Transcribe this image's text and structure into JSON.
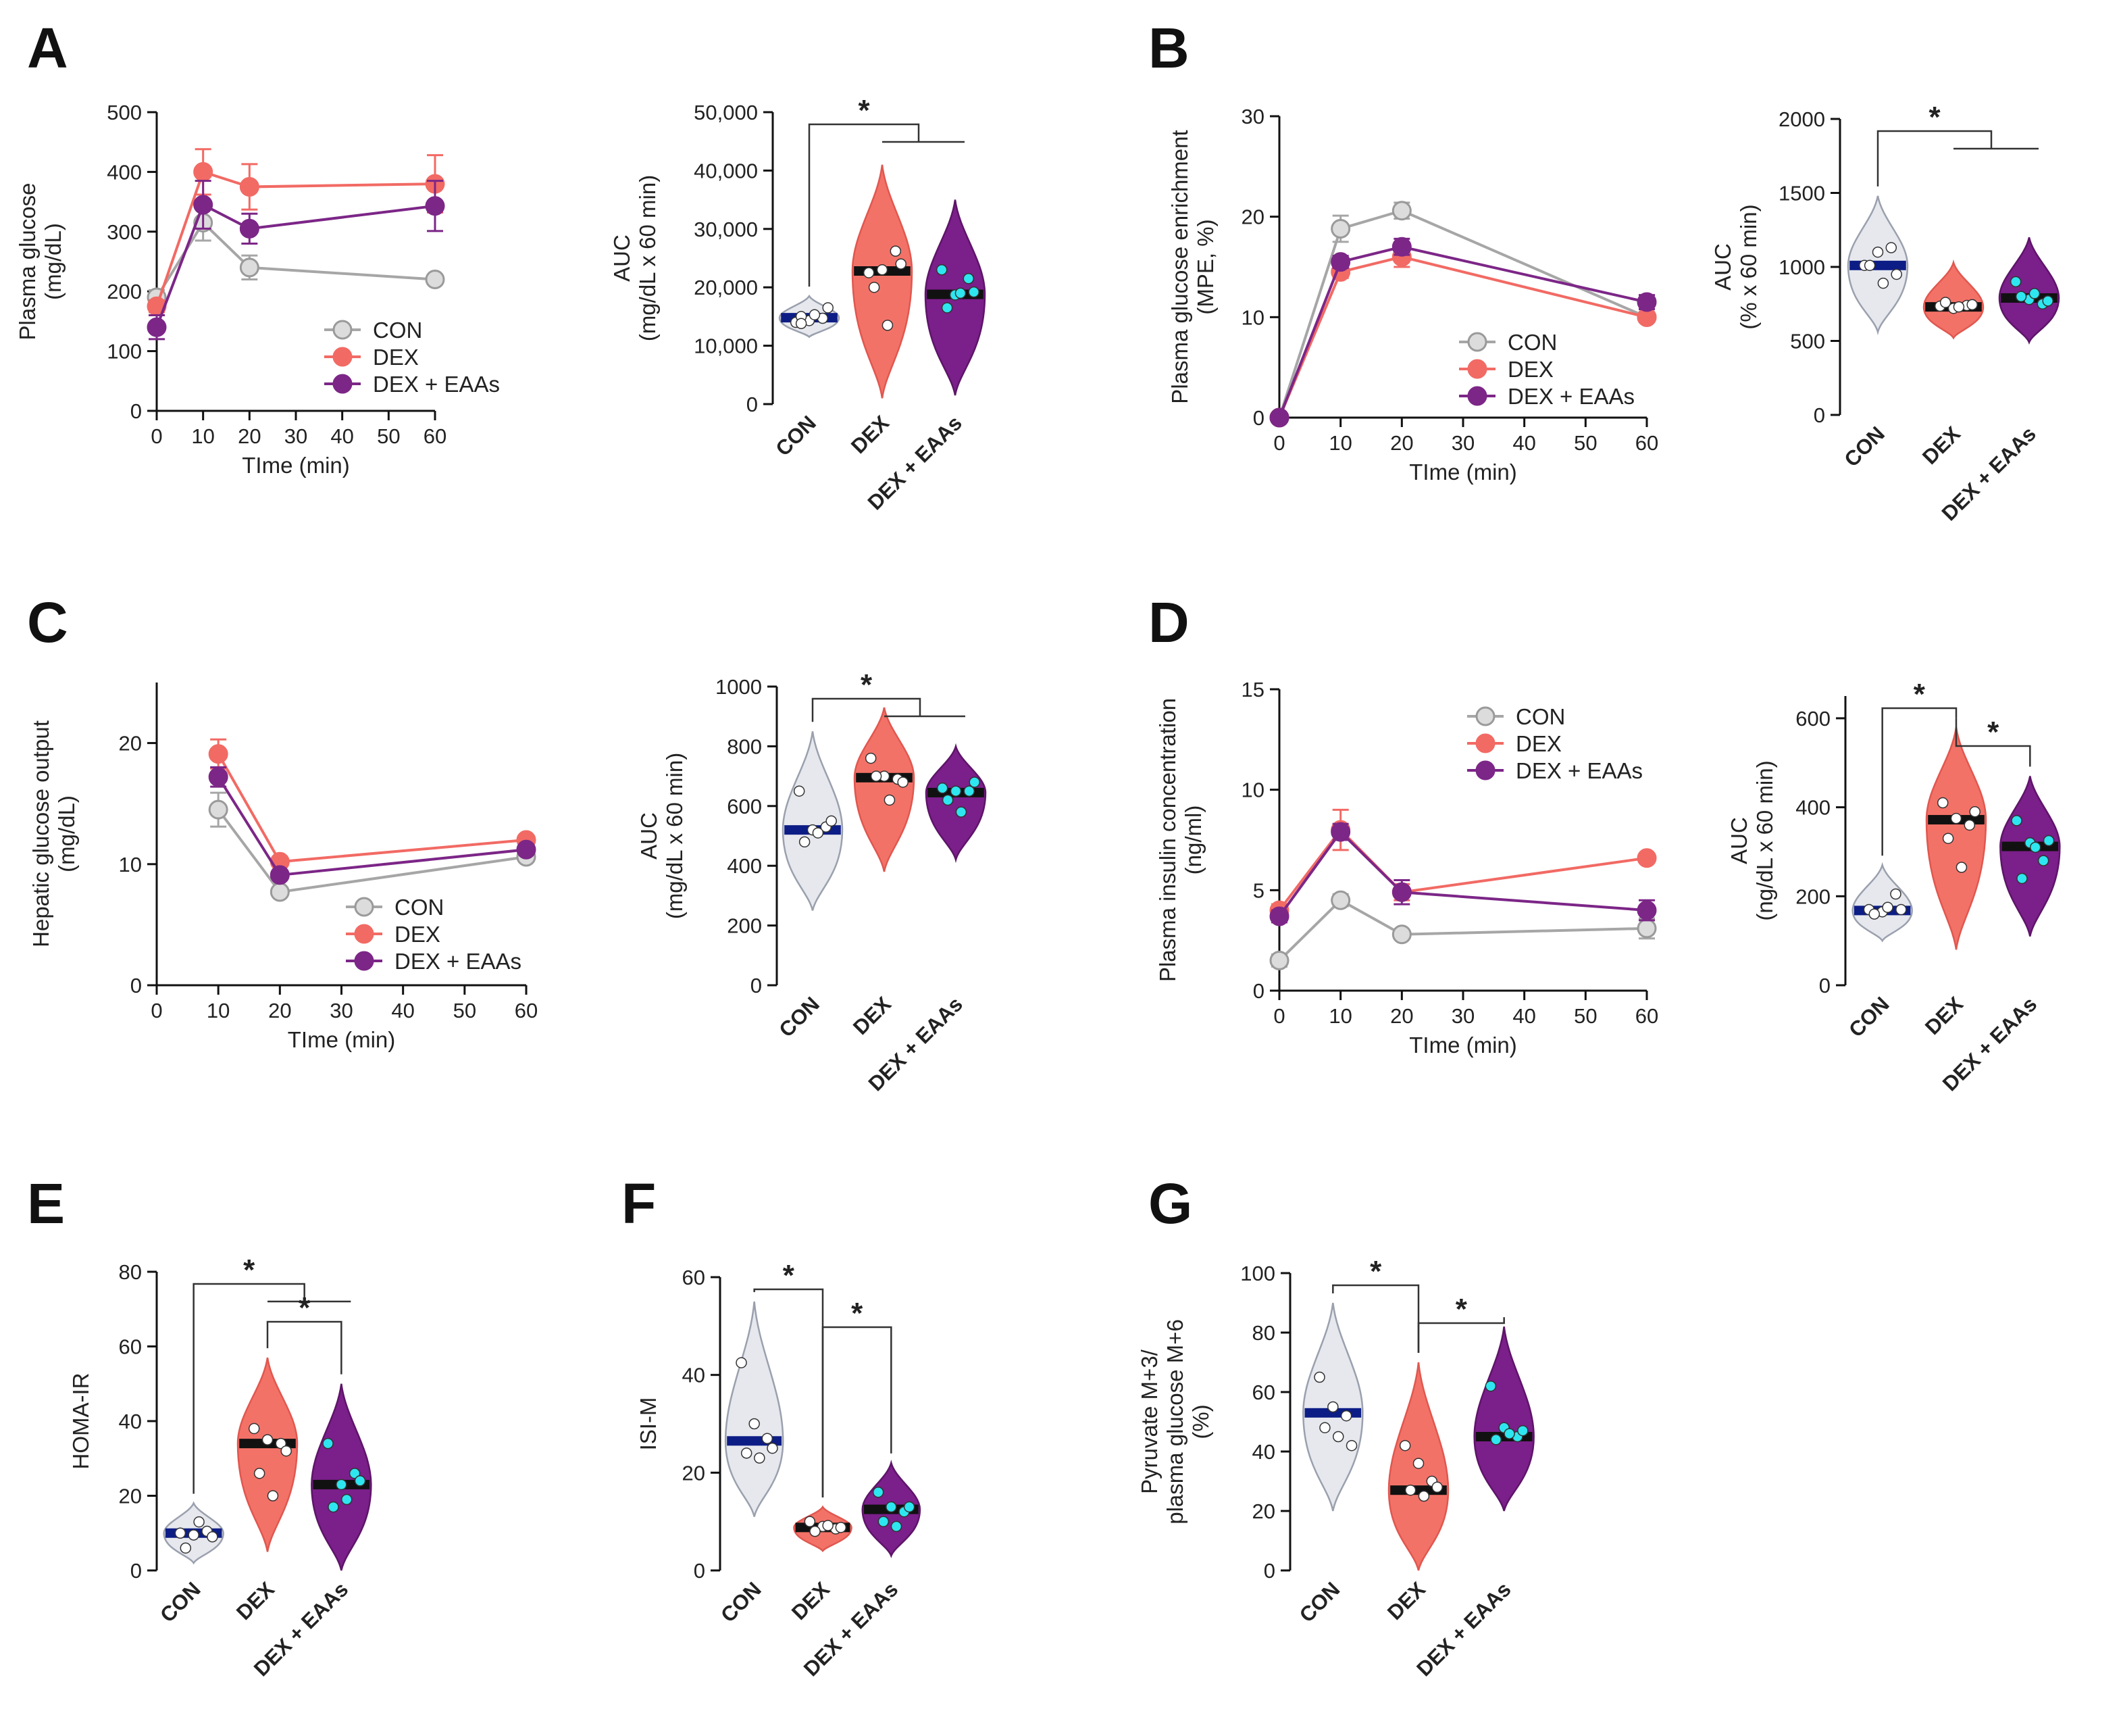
{
  "colors": {
    "CON": {
      "line": "#a6a6a6",
      "fill": "#dcdcdc",
      "violin": "#e6e8ee",
      "violin_stroke": "#9aa0ad",
      "median": "#0d1d86",
      "point": "#ffffff"
    },
    "DEX": {
      "line": "#f26a64",
      "fill": "#f26a64",
      "violin": "#f37268",
      "violin_stroke": "#e0574f",
      "median": "#111111",
      "point": "#ffffff"
    },
    "DEX + EAAs": {
      "line": "#7c2687",
      "fill": "#7c2687",
      "violin": "#7b1f8a",
      "violin_stroke": "#5e1469",
      "median": "#111111",
      "point": "#2ee6f0"
    }
  },
  "chart_data": [
    {
      "id": "A-line",
      "panel": "A",
      "type": "line",
      "ylabel_lines": [
        "Plasma glucose",
        "(mg/dL)"
      ],
      "xlabel": "TIme (min)",
      "x_ticks": [
        0,
        10,
        20,
        30,
        40,
        50,
        60
      ],
      "y_ticks": [
        0,
        100,
        200,
        300,
        400,
        500
      ],
      "ylim": [
        0,
        500
      ],
      "xlim": [
        0,
        60
      ],
      "legend": [
        "CON",
        "DEX",
        "DEX + EAAs"
      ],
      "series": [
        {
          "name": "CON",
          "x": [
            0,
            10,
            20,
            60
          ],
          "y": [
            190,
            315,
            240,
            220
          ],
          "err": [
            12,
            30,
            20,
            8
          ]
        },
        {
          "name": "DEX",
          "x": [
            0,
            10,
            20,
            60
          ],
          "y": [
            175,
            400,
            375,
            380
          ],
          "err": [
            10,
            38,
            38,
            48
          ]
        },
        {
          "name": "DEX + EAAs",
          "x": [
            0,
            10,
            20,
            60
          ],
          "y": [
            140,
            345,
            305,
            343
          ],
          "err": [
            20,
            40,
            25,
            42
          ]
        }
      ]
    },
    {
      "id": "A-violin",
      "panel": "A",
      "type": "violin",
      "ylabel_lines": [
        "AUC",
        "(mg/dL x 60 min)"
      ],
      "y_ticks": [
        0,
        10000,
        20000,
        30000,
        40000,
        50000
      ],
      "y_tick_labels": [
        "0",
        "10,000",
        "20,000",
        "30,000",
        "40,000",
        "50,000"
      ],
      "ylim": [
        0,
        50000
      ],
      "categories": [
        "CON",
        "DEX",
        "DEX + EAAs"
      ],
      "groups": [
        {
          "name": "CON",
          "median": 14800,
          "min": 11500,
          "max": 18500,
          "points": [
            14000,
            14300,
            14700,
            15000,
            15300,
            16500,
            13800
          ]
        },
        {
          "name": "DEX",
          "median": 22800,
          "min": 1000,
          "max": 41000,
          "points": [
            22500,
            23000,
            26200,
            20000,
            13500,
            24000
          ]
        },
        {
          "name": "DEX + EAAs",
          "median": 18800,
          "min": 1500,
          "max": 35000,
          "points": [
            23000,
            18700,
            21500,
            16500,
            19000,
            19200
          ]
        }
      ],
      "significance": [
        {
          "label": "*",
          "from": "CON",
          "to": [
            "DEX",
            "DEX + EAAs"
          ]
        }
      ]
    },
    {
      "id": "B-line",
      "panel": "B",
      "type": "line",
      "ylabel_lines": [
        "Plasma glucose enrichment",
        "(MPE, %)"
      ],
      "xlabel": "TIme (min)",
      "x_ticks": [
        0,
        10,
        20,
        30,
        40,
        50,
        60
      ],
      "y_ticks": [
        0,
        10,
        20,
        30
      ],
      "ylim": [
        0,
        30
      ],
      "xlim": [
        0,
        60
      ],
      "legend": [
        "CON",
        "DEX",
        "DEX + EAAs"
      ],
      "series": [
        {
          "name": "CON",
          "x": [
            0,
            10,
            20,
            60
          ],
          "y": [
            0,
            18.8,
            20.6,
            10
          ],
          "err": [
            0.2,
            1.3,
            0.8,
            0.5
          ]
        },
        {
          "name": "DEX",
          "x": [
            0,
            10,
            20,
            60
          ],
          "y": [
            0,
            14.5,
            16,
            10
          ],
          "err": [
            0.2,
            0.6,
            1.0,
            0.4
          ]
        },
        {
          "name": "DEX + EAAs",
          "x": [
            0,
            10,
            20,
            60
          ],
          "y": [
            0,
            15.5,
            17,
            11.5
          ],
          "err": [
            0.2,
            0.6,
            0.8,
            0.7
          ]
        }
      ]
    },
    {
      "id": "B-violin",
      "panel": "B",
      "type": "violin",
      "ylabel_lines": [
        "AUC",
        "(% x 60 min)"
      ],
      "y_ticks": [
        0,
        500,
        1000,
        1500,
        2000
      ],
      "y_tick_labels": [
        "0",
        "500",
        "1000",
        "1500",
        "2000"
      ],
      "ylim": [
        0,
        2000
      ],
      "categories": [
        "CON",
        "DEX",
        "DEX + EAAs"
      ],
      "groups": [
        {
          "name": "CON",
          "median": 1010,
          "min": 560,
          "max": 1480,
          "points": [
            1010,
            1100,
            1130,
            1010,
            890,
            950
          ]
        },
        {
          "name": "DEX",
          "median": 730,
          "min": 520,
          "max": 1030,
          "points": [
            735,
            720,
            740,
            760,
            730,
            745
          ]
        },
        {
          "name": "DEX + EAAs",
          "median": 790,
          "min": 490,
          "max": 1200,
          "points": [
            900,
            780,
            750,
            800,
            820,
            770
          ]
        }
      ],
      "significance": [
        {
          "label": "*",
          "from": "CON",
          "to": [
            "DEX",
            "DEX + EAAs"
          ]
        }
      ]
    },
    {
      "id": "C-line",
      "panel": "C",
      "type": "line",
      "ylabel_lines": [
        "Hepatic glucose output",
        "(mg/dL)"
      ],
      "xlabel": "TIme (min)",
      "x_ticks": [
        0,
        10,
        20,
        30,
        40,
        50,
        60
      ],
      "y_ticks": [
        0,
        10,
        20
      ],
      "ylim": [
        0,
        25
      ],
      "xlim": [
        0,
        60
      ],
      "legend": [
        "CON",
        "DEX",
        "DEX + EAAs"
      ],
      "series": [
        {
          "name": "CON",
          "x": [
            10,
            20,
            60
          ],
          "y": [
            14.5,
            7.7,
            10.6
          ],
          "err": [
            1.4,
            0.2,
            0.3
          ]
        },
        {
          "name": "DEX",
          "x": [
            10,
            20,
            60
          ],
          "y": [
            19.1,
            10.2,
            12
          ],
          "err": [
            1.2,
            0.3,
            0.3
          ]
        },
        {
          "name": "DEX + EAAs",
          "x": [
            10,
            20,
            60
          ],
          "y": [
            17.2,
            9.1,
            11.2
          ],
          "err": [
            0.8,
            0.3,
            0.3
          ]
        }
      ]
    },
    {
      "id": "C-violin",
      "panel": "C",
      "type": "violin",
      "ylabel_lines": [
        "AUC",
        "(mg/dL x 60 min)"
      ],
      "y_ticks": [
        0,
        200,
        400,
        600,
        800,
        1000
      ],
      "y_tick_labels": [
        "0",
        "200",
        "400",
        "600",
        "800",
        "1000"
      ],
      "ylim": [
        0,
        1000
      ],
      "categories": [
        "CON",
        "DEX",
        "DEX + EAAs"
      ],
      "groups": [
        {
          "name": "CON",
          "median": 520,
          "min": 250,
          "max": 850,
          "points": [
            650,
            520,
            530,
            480,
            510,
            550
          ]
        },
        {
          "name": "DEX",
          "median": 695,
          "min": 380,
          "max": 930,
          "points": [
            760,
            700,
            690,
            700,
            620,
            680
          ]
        },
        {
          "name": "DEX + EAAs",
          "median": 645,
          "min": 420,
          "max": 800,
          "points": [
            660,
            650,
            650,
            620,
            580,
            680
          ]
        }
      ],
      "significance": [
        {
          "label": "*",
          "from": "CON",
          "to": [
            "DEX",
            "DEX + EAAs"
          ]
        }
      ]
    },
    {
      "id": "D-line",
      "panel": "D",
      "type": "line",
      "ylabel_lines": [
        "Plasma insulin concentration",
        "(ng/ml)"
      ],
      "xlabel": "TIme (min)",
      "x_ticks": [
        0,
        10,
        20,
        30,
        40,
        50,
        60
      ],
      "y_ticks": [
        0,
        5,
        10,
        15
      ],
      "ylim": [
        0,
        15
      ],
      "xlim": [
        0,
        60
      ],
      "legend": [
        "CON",
        "DEX",
        "DEX + EAAs"
      ],
      "series": [
        {
          "name": "CON",
          "x": [
            0,
            10,
            20,
            60
          ],
          "y": [
            1.5,
            4.5,
            2.8,
            3.1
          ],
          "err": [
            0.3,
            0.3,
            0.2,
            0.5
          ]
        },
        {
          "name": "DEX",
          "x": [
            0,
            10,
            20,
            60
          ],
          "y": [
            4.0,
            8.0,
            4.9,
            6.6
          ],
          "err": [
            0.3,
            1.0,
            0.4,
            0.2
          ]
        },
        {
          "name": "DEX + EAAs",
          "x": [
            0,
            10,
            20,
            60
          ],
          "y": [
            3.7,
            7.9,
            4.9,
            4.0
          ],
          "err": [
            0.3,
            0.4,
            0.6,
            0.5
          ]
        }
      ]
    },
    {
      "id": "D-violin",
      "panel": "D",
      "type": "violin",
      "ylabel_lines": [
        "AUC",
        "(ng/dL x 60 min)"
      ],
      "y_ticks": [
        0,
        200,
        400,
        600
      ],
      "y_tick_labels": [
        "0",
        "200",
        "400",
        "600"
      ],
      "ylim": [
        0,
        650
      ],
      "categories": [
        "CON",
        "DEX",
        "DEX + EAAs"
      ],
      "groups": [
        {
          "name": "CON",
          "median": 168,
          "min": 100,
          "max": 270,
          "points": [
            170,
            165,
            205,
            160,
            175,
            170
          ]
        },
        {
          "name": "DEX",
          "median": 372,
          "min": 80,
          "max": 580,
          "points": [
            410,
            375,
            360,
            330,
            265,
            390
          ]
        },
        {
          "name": "DEX + EAAs",
          "median": 312,
          "min": 110,
          "max": 470,
          "points": [
            370,
            320,
            280,
            240,
            310,
            325
          ]
        }
      ],
      "significance": [
        {
          "label": "*",
          "from": "CON",
          "to": [
            "DEX"
          ]
        },
        {
          "label": "*",
          "from": "DEX",
          "to": [
            "DEX + EAAs"
          ]
        }
      ]
    },
    {
      "id": "E-violin",
      "panel": "E",
      "type": "violin",
      "ylabel_lines": [
        "HOMA-IR"
      ],
      "y_ticks": [
        0,
        20,
        40,
        60,
        80
      ],
      "y_tick_labels": [
        "0",
        "20",
        "40",
        "60",
        "80"
      ],
      "ylim": [
        0,
        80
      ],
      "categories": [
        "CON",
        "DEX",
        "DEX + EAAs"
      ],
      "groups": [
        {
          "name": "CON",
          "median": 10,
          "min": 2,
          "max": 18,
          "points": [
            10,
            9.5,
            10.5,
            6,
            13,
            9
          ]
        },
        {
          "name": "DEX",
          "median": 34,
          "min": 5,
          "max": 57,
          "points": [
            38,
            35,
            34,
            26,
            20,
            32
          ]
        },
        {
          "name": "DEX + EAAs",
          "median": 23,
          "min": 0,
          "max": 50,
          "points": [
            34,
            23,
            26,
            17,
            19,
            24
          ]
        }
      ],
      "significance": [
        {
          "label": "*",
          "from": "CON",
          "to": [
            "DEX",
            "DEX + EAAs"
          ]
        },
        {
          "label": "*",
          "from": "DEX",
          "to": [
            "DEX + EAAs"
          ]
        }
      ]
    },
    {
      "id": "F-violin",
      "panel": "F",
      "type": "violin",
      "ylabel_lines": [
        "ISI-M"
      ],
      "y_ticks": [
        0,
        20,
        40,
        60
      ],
      "y_tick_labels": [
        "0",
        "20",
        "40",
        "60"
      ],
      "ylim": [
        0,
        60
      ],
      "categories": [
        "CON",
        "DEX",
        "DEX + EAAs"
      ],
      "groups": [
        {
          "name": "CON",
          "median": 26.5,
          "min": 11,
          "max": 55,
          "points": [
            42.5,
            30,
            27,
            24,
            23,
            25
          ]
        },
        {
          "name": "DEX",
          "median": 8.8,
          "min": 4,
          "max": 13,
          "points": [
            10,
            9,
            8.5,
            8,
            9.2,
            8.8
          ]
        },
        {
          "name": "DEX + EAAs",
          "median": 12.5,
          "min": 3,
          "max": 22,
          "points": [
            16,
            13,
            12,
            10,
            9,
            13
          ]
        }
      ],
      "significance": [
        {
          "label": "*",
          "from": "CON",
          "to": [
            "DEX"
          ]
        },
        {
          "label": "*",
          "from": "DEX",
          "to": [
            "DEX + EAAs"
          ]
        }
      ]
    },
    {
      "id": "G-violin",
      "panel": "G",
      "type": "violin",
      "ylabel_lines": [
        "Pyruvate M+3/",
        "plasma glucose M+6",
        "(%)"
      ],
      "y_ticks": [
        0,
        20,
        40,
        60,
        80,
        100
      ],
      "y_tick_labels": [
        "0",
        "20",
        "40",
        "60",
        "80",
        "100"
      ],
      "ylim": [
        0,
        100
      ],
      "categories": [
        "CON",
        "DEX",
        "DEX + EAAs"
      ],
      "groups": [
        {
          "name": "CON",
          "median": 53,
          "min": 20,
          "max": 90,
          "points": [
            65,
            55,
            52,
            48,
            45,
            42
          ]
        },
        {
          "name": "DEX",
          "median": 27,
          "min": 0,
          "max": 70,
          "points": [
            42,
            36,
            30,
            27,
            25,
            28
          ]
        },
        {
          "name": "DEX + EAAs",
          "median": 45,
          "min": 20,
          "max": 82,
          "points": [
            62,
            48,
            45,
            44,
            46,
            47
          ]
        }
      ],
      "significance": [
        {
          "label": "*",
          "from": "CON",
          "to": [
            "DEX"
          ]
        },
        {
          "label": "*",
          "from": "DEX",
          "to": [
            "DEX + EAAs"
          ]
        }
      ]
    }
  ],
  "panel_letters": [
    "A",
    "B",
    "C",
    "D",
    "E",
    "F",
    "G"
  ]
}
